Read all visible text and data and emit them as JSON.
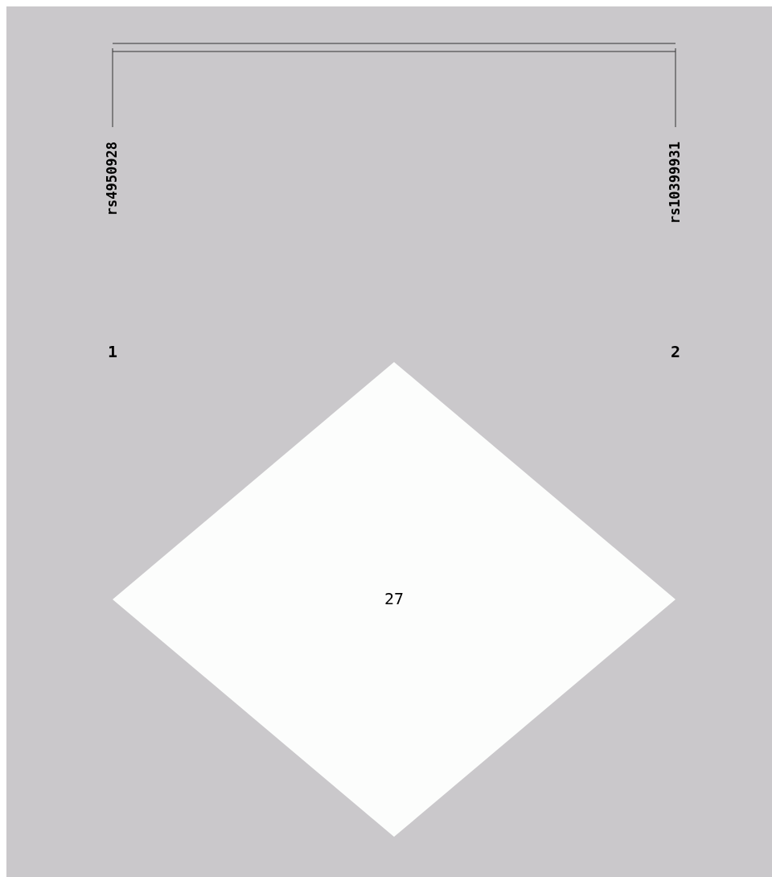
{
  "chart_data": {
    "type": "other",
    "categories": [
      null
    ],
    "values": [
      27
    ],
    "data_labels": true,
    "annotations": [
      "rs4950928",
      "rs10399931",
      "1",
      "2"
    ]
  }
}
